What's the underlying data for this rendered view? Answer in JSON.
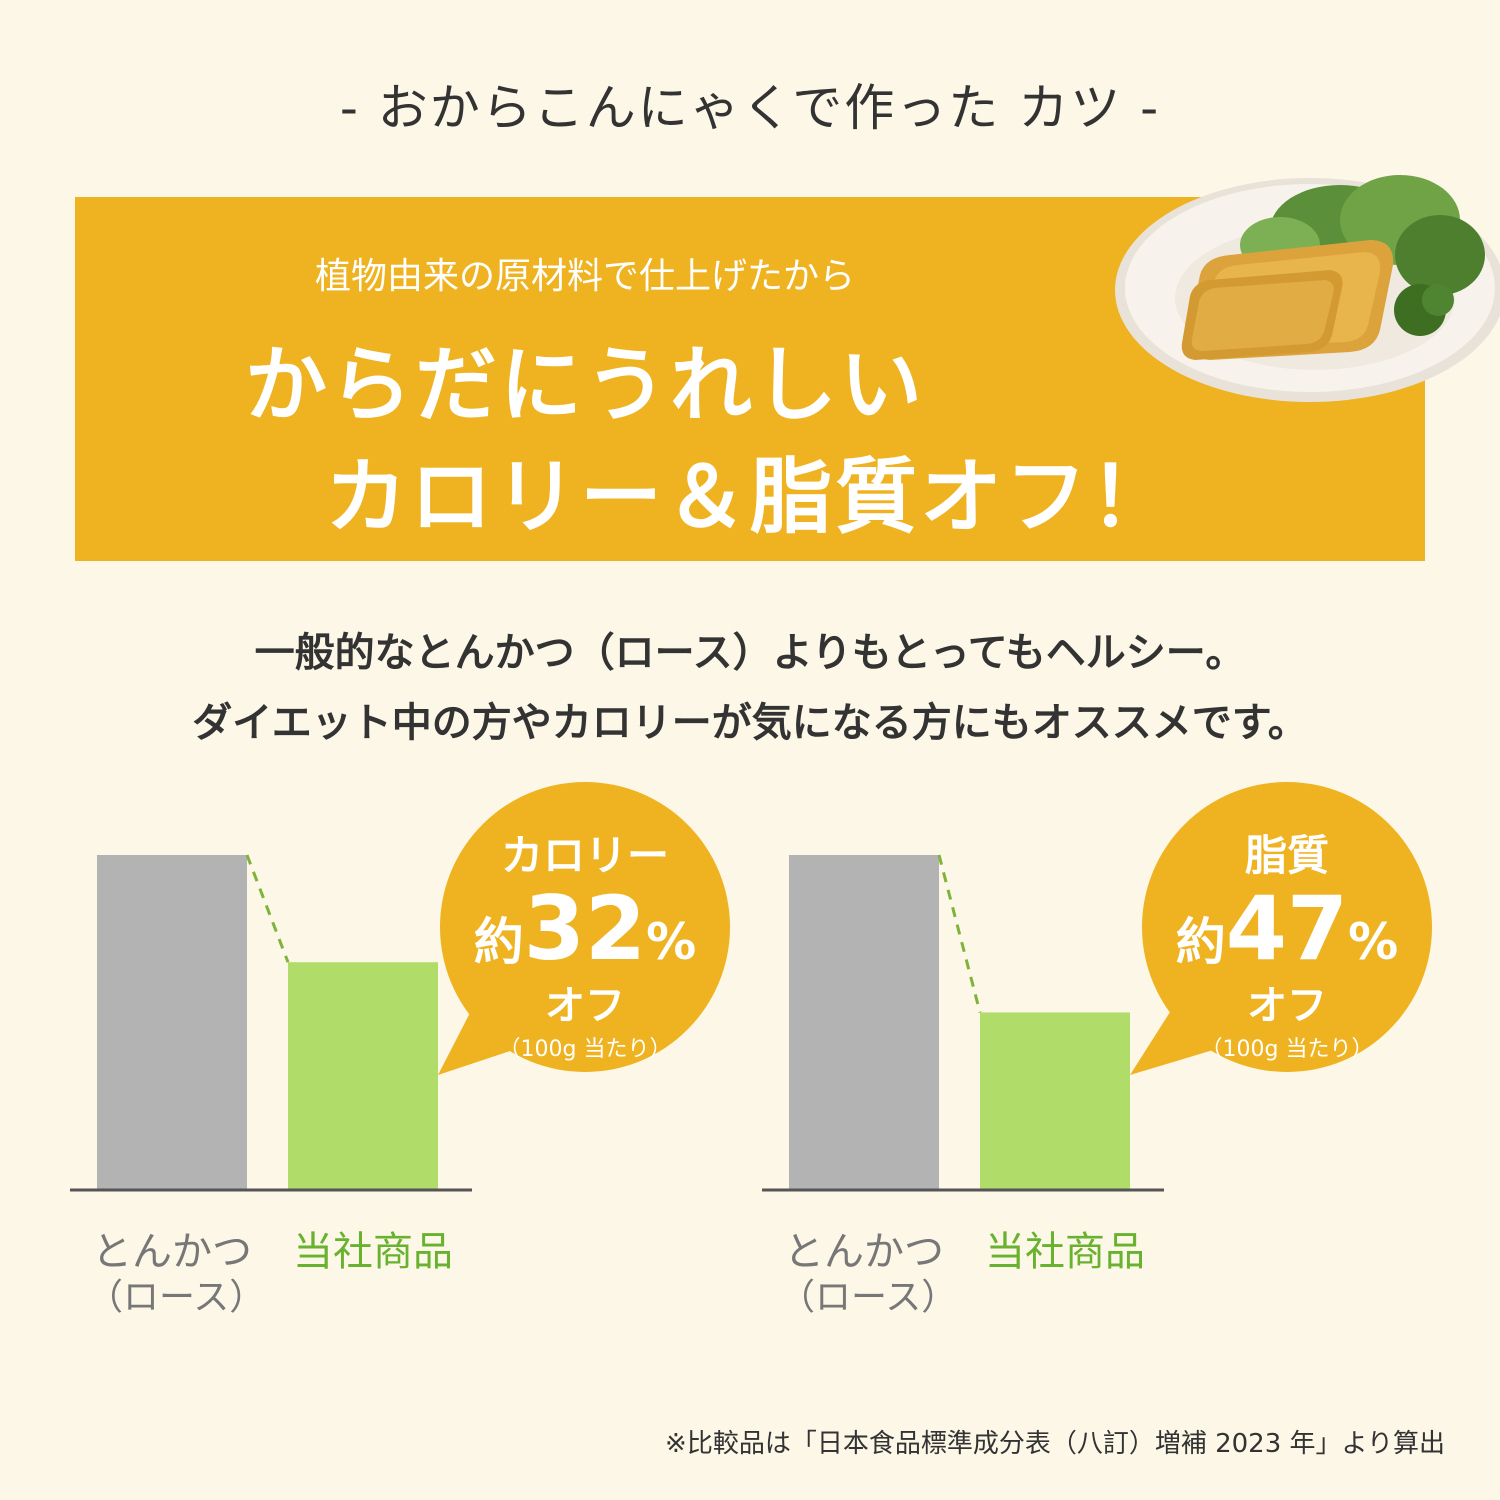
{
  "header": {
    "title": "-  おからこんにゃくで作った カツ  -"
  },
  "banner": {
    "sub": "植物由来の原材料で仕上げたから",
    "main_line1": "からだにうれしい",
    "main_line2": "カロリー＆脂質オフ！"
  },
  "description": {
    "line1": "一般的なとんかつ（ロース）よりもとってもヘルシー。",
    "line2": "ダイエット中の方やカロリーが気になる方にもオススメです。"
  },
  "colors": {
    "accent": "#efb221",
    "bar_gray": "#b3b3b3",
    "bar_green": "#b0dc6a",
    "label_green": "#68b22f",
    "background": "#fcf7e7"
  },
  "chart_data": [
    {
      "type": "bar",
      "categories": [
        "とんかつ（ロース）",
        "当社商品"
      ],
      "category_lines": [
        [
          "とんかつ",
          "（ロース）"
        ],
        [
          "当社商品"
        ]
      ],
      "values": [
        100,
        68
      ],
      "ylim": [
        0,
        100
      ],
      "grid": false,
      "callout": {
        "metric": "カロリー",
        "prefix": "約",
        "number": "32",
        "unit": "%",
        "suffix": "オフ",
        "note": "（100g 当たり）"
      }
    },
    {
      "type": "bar",
      "categories": [
        "とんかつ（ロース）",
        "当社商品"
      ],
      "category_lines": [
        [
          "とんかつ",
          "（ロース）"
        ],
        [
          "当社商品"
        ]
      ],
      "values": [
        100,
        53
      ],
      "ylim": [
        0,
        100
      ],
      "grid": false,
      "callout": {
        "metric": "脂質",
        "prefix": "約",
        "number": "47",
        "unit": "%",
        "suffix": "オフ",
        "note": "（100g 当たり）"
      }
    }
  ],
  "footnote": "※比較品は「日本食品標準成分表（八訂）増補 2023 年」より算出"
}
